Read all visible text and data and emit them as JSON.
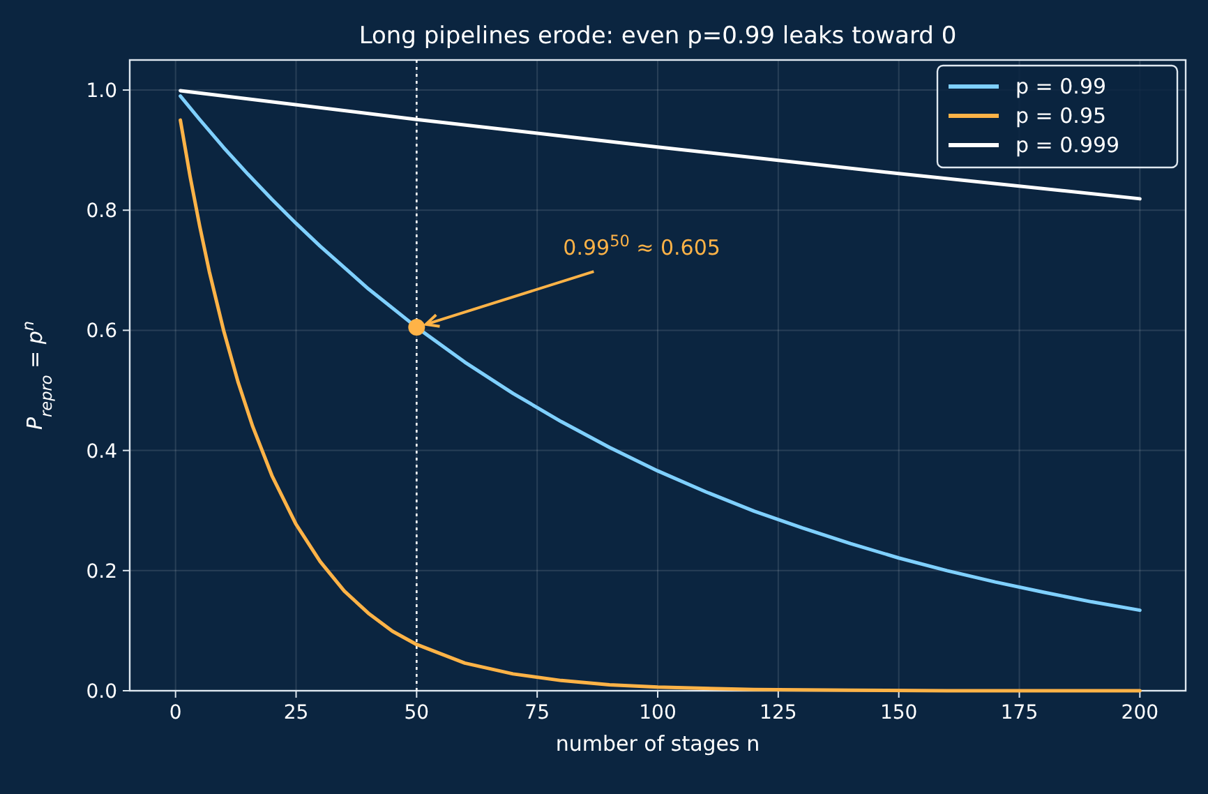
{
  "chart_data": {
    "type": "line",
    "title": "Long pipelines erode: even p=0.99 leaks toward 0",
    "xlabel": "number of stages  n",
    "ylabel": "P$_{repro}$ = p$^{n}$",
    "xlim": [
      -9.5,
      209.5
    ],
    "xticks": [
      0,
      25,
      50,
      75,
      100,
      125,
      150,
      175,
      200
    ],
    "ylim": [
      0,
      1.05
    ],
    "yticks": [
      {
        "value": 0,
        "label": "0.0"
      },
      0.2,
      0.4,
      0.6,
      0.8,
      {
        "value": 1,
        "label": "1.0"
      }
    ],
    "grid": true,
    "legend": "top right",
    "marker": "none",
    "line_style": "solid",
    "series": [
      {
        "name": "p = 0.99",
        "color": "#7fd0ff",
        "x": [
          1,
          5,
          10,
          15,
          20,
          25,
          30,
          40,
          50,
          60,
          70,
          80,
          90,
          100,
          110,
          120,
          130,
          140,
          150,
          160,
          170,
          180,
          190,
          200
        ],
        "values": [
          0.99,
          0.951,
          0.904,
          0.86,
          0.818,
          0.778,
          0.74,
          0.669,
          0.605,
          0.547,
          0.495,
          0.448,
          0.405,
          0.366,
          0.331,
          0.299,
          0.271,
          0.245,
          0.221,
          0.2,
          0.181,
          0.164,
          0.148,
          0.134
        ]
      },
      {
        "name": "p = 0.95",
        "color": "#ffb347",
        "x": [
          1,
          3,
          5,
          7,
          10,
          13,
          16,
          20,
          25,
          30,
          35,
          40,
          45,
          50,
          60,
          70,
          80,
          90,
          100,
          120,
          140,
          160,
          200
        ],
        "values": [
          0.95,
          0.857,
          0.774,
          0.698,
          0.599,
          0.513,
          0.44,
          0.358,
          0.277,
          0.215,
          0.166,
          0.129,
          0.099,
          0.077,
          0.046,
          0.028,
          0.017,
          0.01,
          0.006,
          0.002,
          0.001,
          0,
          0
        ]
      },
      {
        "name": "p = 0.999",
        "color": "#ffffff",
        "x": [
          1,
          50,
          100,
          150,
          200
        ],
        "values": [
          0.999,
          0.951,
          0.905,
          0.861,
          0.819
        ]
      },
      {
        "type": "scatter",
        "marker": "circle",
        "color": "#ffb347",
        "x": [
          50
        ],
        "values": [
          0.605
        ]
      }
    ],
    "ref_lines": [
      {
        "axis": "x",
        "value": 50,
        "color": "#ffffff",
        "line_style": "dotted"
      }
    ],
    "annotations": [
      {
        "text": "0.99$^{50}$ ≈ 0.605",
        "x": 50,
        "y": 0.605
      }
    ]
  }
}
